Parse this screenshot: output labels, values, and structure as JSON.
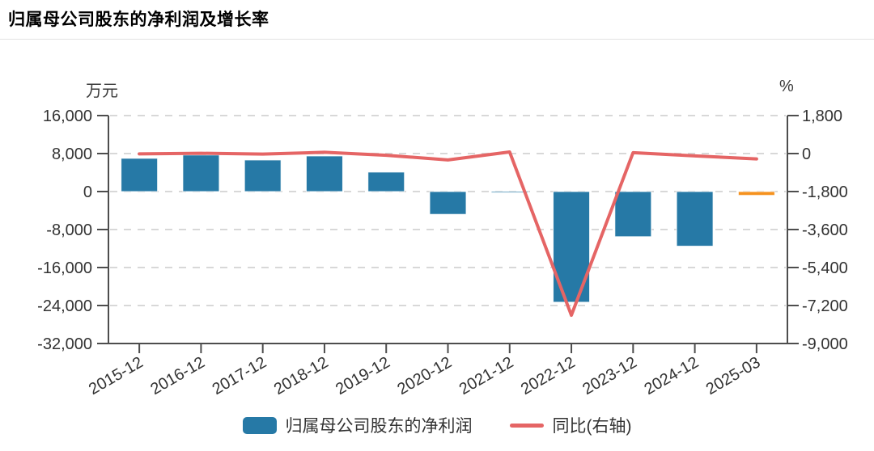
{
  "title": "归属母公司股东的净利润及增长率",
  "chart_data": {
    "type": "bar",
    "categories": [
      "2015-12",
      "2016-12",
      "2017-12",
      "2018-12",
      "2019-12",
      "2020-12",
      "2021-12",
      "2022-12",
      "2023-12",
      "2024-12",
      "2025-03"
    ],
    "series": [
      {
        "name": "归属母公司股东的净利润",
        "type": "bar",
        "axis": "left",
        "unit": "万元",
        "values": [
          7000,
          7700,
          6650,
          7500,
          4100,
          -4800,
          -250,
          -23300,
          -9500,
          -11500,
          -800
        ]
      },
      {
        "name": "同比(右轴)",
        "type": "line",
        "axis": "right",
        "unit": "%",
        "values": [
          -15,
          15,
          -25,
          60,
          -80,
          -300,
          75,
          -7660,
          45,
          -110,
          -255
        ]
      }
    ],
    "left_axis": {
      "title": "万元",
      "max": 16000,
      "min": -32000,
      "ticks": [
        16000,
        8000,
        0,
        -8000,
        -16000,
        -24000,
        -32000
      ]
    },
    "right_axis": {
      "title": "%",
      "max": 1800,
      "min": -9000,
      "ticks": [
        1800,
        0,
        -1800,
        -3600,
        -5400,
        -7200,
        -9000
      ]
    },
    "grid": "dashed-horizontal",
    "legend_position": "bottom",
    "colors": {
      "bar": "#2679a6",
      "bar_last": "#f5921e",
      "line": "#e56565",
      "axis": "#4d4d4d",
      "grid": "#d8d8d8",
      "tick_label": "#333333"
    }
  },
  "legend": {
    "items": [
      {
        "label": "归属母公司股东的净利润",
        "marker": "bar-swatch"
      },
      {
        "label": "同比(右轴)",
        "marker": "line-swatch"
      }
    ]
  }
}
